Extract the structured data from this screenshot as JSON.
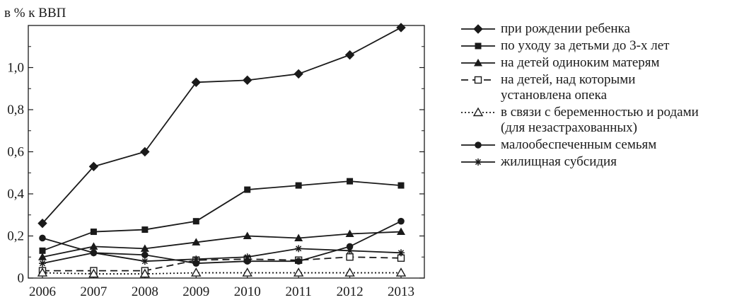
{
  "chart_data": {
    "type": "line",
    "ylabel": "в % к ВВП",
    "xlabel": "",
    "x": [
      "2006",
      "2007",
      "2008",
      "2009",
      "2010",
      "2011",
      "2012",
      "2013"
    ],
    "ylim": [
      0,
      1.2
    ],
    "yticks": [
      "0",
      "0,2",
      "0,4",
      "0,6",
      "0,8",
      "1,0"
    ],
    "ytick_values": [
      0,
      0.2,
      0.4,
      0.6,
      0.8,
      1.0
    ],
    "legend_placement": "right",
    "grid": false,
    "series": [
      {
        "name": "при рождении ребенка",
        "marker": "diamond",
        "line": "solid",
        "values": [
          0.26,
          0.53,
          0.6,
          0.93,
          0.94,
          0.97,
          1.06,
          1.19
        ]
      },
      {
        "name": "по уходу за детьми до 3-х лет",
        "marker": "square",
        "line": "solid",
        "values": [
          0.13,
          0.22,
          0.23,
          0.27,
          0.42,
          0.44,
          0.46,
          0.44
        ]
      },
      {
        "name": "на детей одиноким матерям",
        "marker": "triangle",
        "line": "solid",
        "values": [
          0.1,
          0.15,
          0.14,
          0.17,
          0.2,
          0.19,
          0.21,
          0.22
        ]
      },
      {
        "name": "на детей, над которыми\nустановлена опека",
        "marker": "open-square",
        "line": "dashed",
        "values": [
          0.035,
          0.035,
          0.035,
          0.085,
          0.09,
          0.085,
          0.1,
          0.095
        ]
      },
      {
        "name": "в связи с беременностью и родами\n(для незастрахованных)",
        "marker": "open-triangle",
        "line": "dotted",
        "values": [
          0.025,
          0.02,
          0.02,
          0.025,
          0.025,
          0.025,
          0.025,
          0.025
        ]
      },
      {
        "name": "малообеспеченным семьям",
        "marker": "circle",
        "line": "solid",
        "values": [
          0.19,
          0.12,
          0.11,
          0.07,
          0.08,
          0.08,
          0.15,
          0.27
        ]
      },
      {
        "name": "жилищная субсидия",
        "marker": "star",
        "line": "solid",
        "values": [
          0.07,
          0.12,
          0.08,
          0.09,
          0.1,
          0.14,
          0.13,
          0.12
        ]
      }
    ]
  }
}
